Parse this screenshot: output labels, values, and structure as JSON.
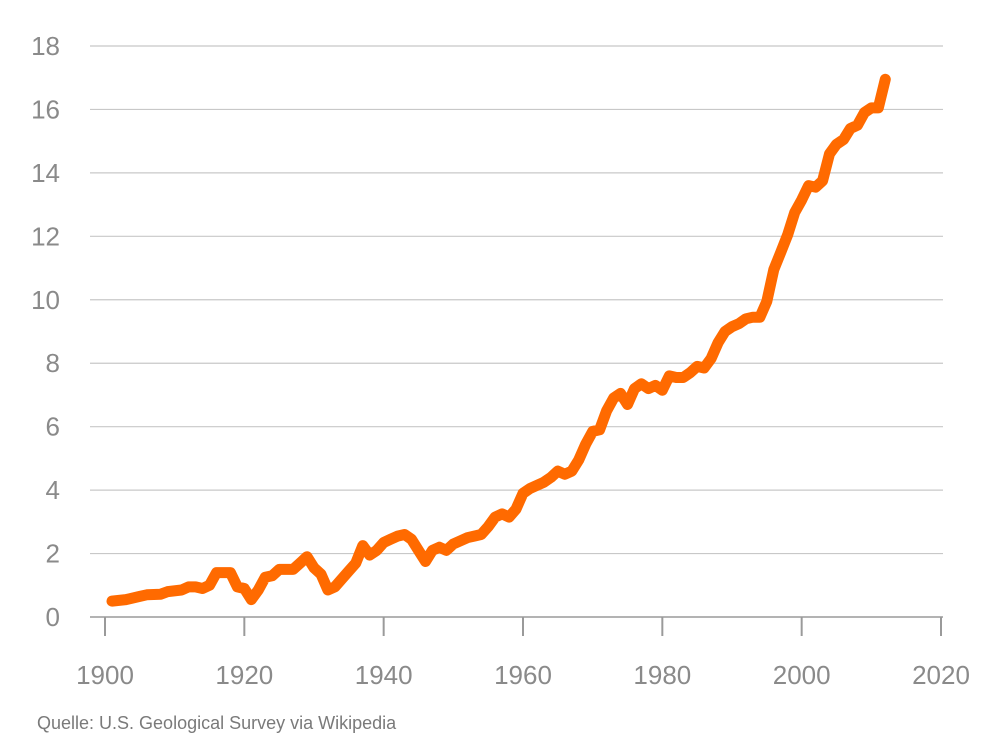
{
  "source": "Quelle: U.S. Geological Survey via Wikipedia",
  "colors": {
    "line": "#ff6a00",
    "grid": "#c8c8c8",
    "axis": "#9a9a9a",
    "text": "#8a8a8a"
  },
  "chart_data": {
    "type": "line",
    "title": "",
    "xlabel": "",
    "ylabel": "",
    "xlim": [
      1900,
      2020
    ],
    "ylim": [
      0,
      18
    ],
    "xticks": [
      1900,
      1920,
      1940,
      1960,
      1980,
      2000,
      2020
    ],
    "yticks": [
      0,
      2,
      4,
      6,
      8,
      10,
      12,
      14,
      16,
      18
    ],
    "grid": "horizontal",
    "series": [
      {
        "x": [
          1901,
          1903,
          1905,
          1906,
          1908,
          1909,
          1911,
          1912,
          1913,
          1914,
          1915,
          1916,
          1917,
          1918,
          1919,
          1920,
          1921,
          1922,
          1923,
          1924,
          1925,
          1926,
          1927,
          1928,
          1929,
          1930,
          1931,
          1932,
          1933,
          1934,
          1935,
          1936,
          1937,
          1938,
          1939,
          1940,
          1941,
          1942,
          1943,
          1944,
          1945,
          1946,
          1947,
          1948,
          1949,
          1950,
          1951,
          1952,
          1953,
          1954,
          1955,
          1956,
          1957,
          1958,
          1959,
          1960,
          1961,
          1962,
          1963,
          1964,
          1965,
          1966,
          1967,
          1968,
          1969,
          1970,
          1971,
          1972,
          1973,
          1974,
          1975,
          1976,
          1977,
          1978,
          1979,
          1980,
          1981,
          1982,
          1983,
          1984,
          1985,
          1986,
          1987,
          1988,
          1989,
          1990,
          1991,
          1992,
          1993,
          1994,
          1995,
          1996,
          1997,
          1998,
          1999,
          2000,
          2001,
          2002,
          2003,
          2004,
          2005,
          2006,
          2007,
          2008,
          2009,
          2010,
          2011,
          2012
        ],
        "y": [
          0.5,
          0.55,
          0.65,
          0.7,
          0.72,
          0.8,
          0.85,
          0.95,
          0.95,
          0.9,
          1.0,
          1.4,
          1.4,
          1.4,
          0.95,
          0.9,
          0.55,
          0.85,
          1.25,
          1.3,
          1.5,
          1.5,
          1.5,
          1.7,
          1.9,
          1.55,
          1.35,
          0.85,
          0.95,
          1.2,
          1.45,
          1.7,
          2.25,
          1.95,
          2.1,
          2.35,
          2.45,
          2.55,
          2.6,
          2.45,
          2.1,
          1.75,
          2.1,
          2.2,
          2.1,
          2.3,
          2.4,
          2.5,
          2.55,
          2.6,
          2.85,
          3.15,
          3.25,
          3.15,
          3.4,
          3.9,
          4.05,
          4.15,
          4.25,
          4.4,
          4.6,
          4.5,
          4.6,
          4.95,
          5.45,
          5.85,
          5.9,
          6.5,
          6.9,
          7.05,
          6.7,
          7.2,
          7.35,
          7.2,
          7.3,
          7.15,
          7.6,
          7.55,
          7.55,
          7.7,
          7.9,
          7.85,
          8.15,
          8.65,
          9.0,
          9.15,
          9.25,
          9.4,
          9.45,
          9.45,
          9.95,
          10.95,
          11.5,
          12.05,
          12.75,
          13.15,
          13.6,
          13.55,
          13.75,
          14.6,
          14.9,
          15.05,
          15.4,
          15.5,
          15.9,
          16.05,
          16.05,
          16.95
        ]
      }
    ]
  }
}
